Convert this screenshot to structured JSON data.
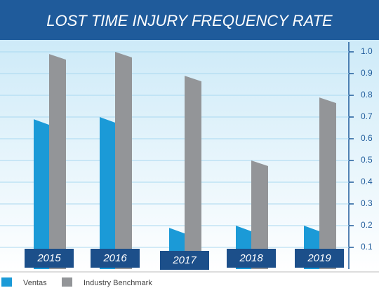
{
  "chart_data": {
    "type": "bar",
    "title": "LOST TIME INJURY FREQUENCY RATE",
    "categories": [
      "2015",
      "2016",
      "2017",
      "2018",
      "2019"
    ],
    "series": [
      {
        "name": "Ventas",
        "color": "#1b9ad7",
        "values": [
          0.69,
          0.7,
          0.19,
          0.2,
          0.2
        ]
      },
      {
        "name": "Industry Benchmark",
        "color": "#939598",
        "values": [
          0.99,
          1.0,
          0.89,
          0.5,
          0.79
        ]
      }
    ],
    "ylim": [
      0,
      1.05
    ],
    "yticks": [
      0.1,
      0.2,
      0.3,
      0.4,
      0.5,
      0.6,
      0.7,
      0.8,
      0.9,
      {
        "value": 1,
        "label": "1.0"
      }
    ],
    "grid": true
  }
}
